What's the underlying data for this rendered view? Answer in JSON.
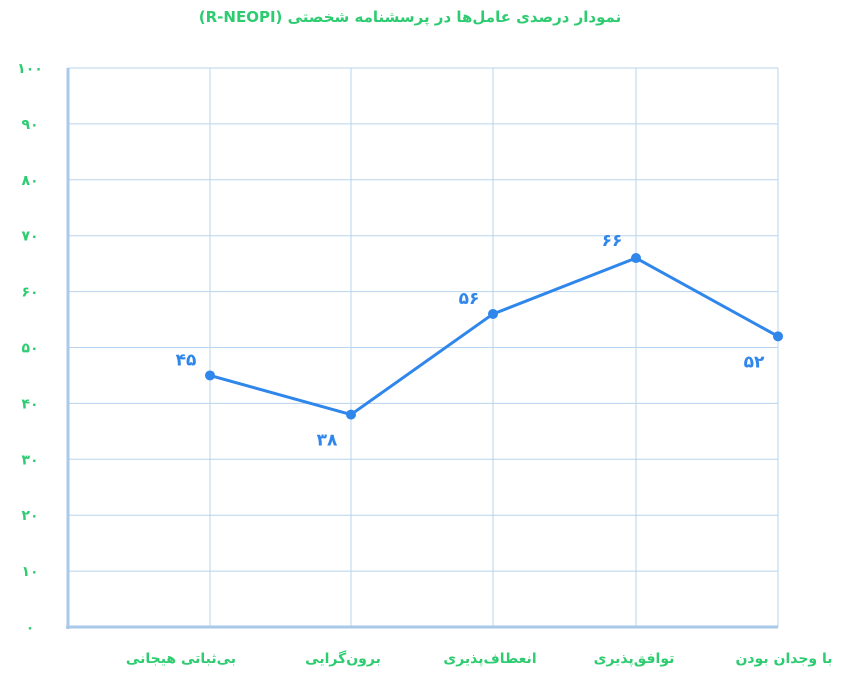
{
  "chart_data": {
    "type": "line",
    "title": "نمودار درصدی عامل‌ها در پرسشنامه شخصتی (R-NEOPI)",
    "xlabel": "",
    "ylabel": "",
    "ylim": [
      0,
      100
    ],
    "y_ticks": [
      {
        "value": 0,
        "label": "۰"
      },
      {
        "value": 10,
        "label": "۱۰"
      },
      {
        "value": 20,
        "label": "۲۰"
      },
      {
        "value": 30,
        "label": "۳۰"
      },
      {
        "value": 40,
        "label": "۴۰"
      },
      {
        "value": 50,
        "label": "۵۰"
      },
      {
        "value": 60,
        "label": "۶۰"
      },
      {
        "value": 70,
        "label": "۷۰"
      },
      {
        "value": 80,
        "label": "۸۰"
      },
      {
        "value": 90,
        "label": "۹۰"
      },
      {
        "value": 100,
        "label": "۱۰۰"
      }
    ],
    "categories": [
      "بی‌ثباتی هیجانی",
      "برون‌گرایی",
      "انعطاف‌پذیری",
      "توافق‌پذیری",
      "با وجدان بودن"
    ],
    "series": [
      {
        "values": [
          45,
          38,
          56,
          66,
          52
        ],
        "data_labels": [
          "۴۵",
          "۳۸",
          "۵۶",
          "۶۶",
          "۵۲"
        ]
      }
    ],
    "grid": true,
    "colors": {
      "line": "#2f86eb",
      "labels": "#2ecc71",
      "grid": "#b8d4ee",
      "axis": "#a9c9ea"
    }
  }
}
